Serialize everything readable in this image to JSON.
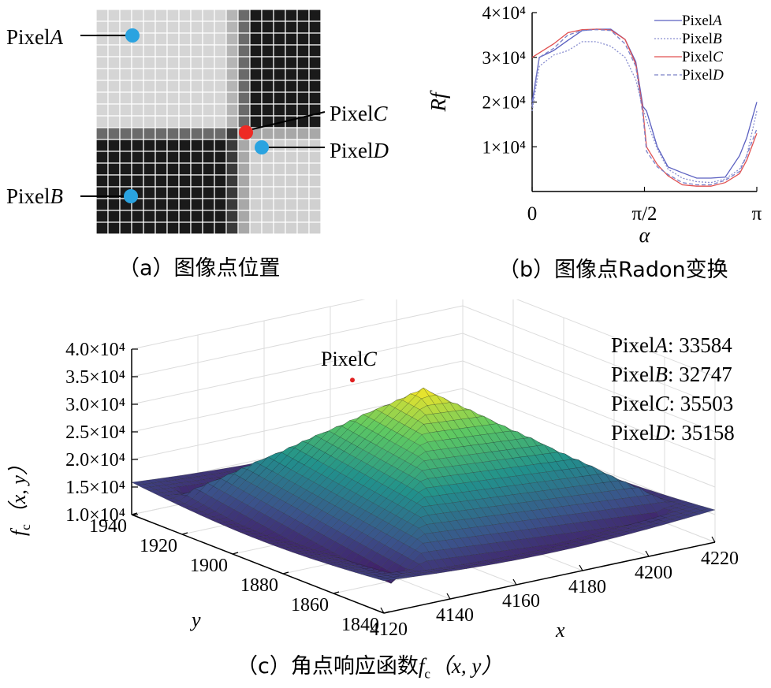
{
  "panel_a": {
    "caption": "（a）图像点位置",
    "pixel_labels": [
      {
        "prefix": "Pixel",
        "letter": "A",
        "color": "#2aa3e0"
      },
      {
        "prefix": "Pixel",
        "letter": "B",
        "color": "#2aa3e0"
      },
      {
        "prefix": "Pixel",
        "letter": "C",
        "color": "#ee2a24"
      },
      {
        "prefix": "Pixel",
        "letter": "D",
        "color": "#2aa3e0"
      }
    ]
  },
  "panel_b": {
    "caption": "（b）图像点Radon变换",
    "ylabel": "Rf",
    "xlabel": "α"
  },
  "panel_c": {
    "caption_prefix": "（c）角点响应函数",
    "caption_f": "f",
    "caption_sub": "c",
    "caption_args": "（x, y）",
    "peak_label": "PixelC",
    "zlabel_f": "f",
    "zlabel_sub": "c",
    "zlabel_args": "（x, y）",
    "xlabel": "x",
    "ylabel": "y",
    "values_list": [
      {
        "name": "PixelA",
        "value": "33584"
      },
      {
        "name": "PixelB",
        "value": "32747"
      },
      {
        "name": "PixelC",
        "value": "35503"
      },
      {
        "name": "PixelD",
        "value": "35158"
      }
    ]
  },
  "chart_data": [
    {
      "type": "line",
      "panel": "b",
      "xlabel": "α",
      "ylabel": "Rf",
      "xlim": [
        0,
        3.1416
      ],
      "ylim": [
        0,
        40000
      ],
      "x_ticks": [
        "0",
        "π/2",
        "π"
      ],
      "y_ticks": [
        "1×10⁴",
        "2×10⁴",
        "3×10⁴",
        "4×10⁴"
      ],
      "grid": false,
      "legend_position": "top-right",
      "x": [
        0,
        0.1,
        0.3,
        0.5,
        0.7,
        0.9,
        1.1,
        1.3,
        1.45,
        1.55,
        1.6,
        1.75,
        1.9,
        2.1,
        2.3,
        2.5,
        2.7,
        2.9,
        3.0,
        3.1416
      ],
      "series": [
        {
          "name": "PixelA",
          "color": "#5a5fc0",
          "dash": "solid",
          "values": [
            20000,
            30000,
            31500,
            33800,
            36000,
            36300,
            36300,
            34000,
            29000,
            19000,
            18000,
            10000,
            5500,
            4200,
            3000,
            3000,
            3200,
            8000,
            12000,
            20000
          ]
        },
        {
          "name": "PixelB",
          "color": "#8a8fd0",
          "dash": "dotted",
          "values": [
            18000,
            28000,
            30500,
            31500,
            33500,
            33500,
            32500,
            30000,
            25000,
            18500,
            16000,
            9500,
            5000,
            3000,
            2200,
            2000,
            2800,
            5000,
            8000,
            18000
          ]
        },
        {
          "name": "PixelC",
          "color": "#e05050",
          "dash": "solid",
          "values": [
            30000,
            31000,
            33000,
            35500,
            36200,
            36300,
            36100,
            34000,
            28500,
            18000,
            10000,
            6000,
            3500,
            1500,
            1200,
            1200,
            2000,
            4000,
            7000,
            13000
          ]
        },
        {
          "name": "PixelD",
          "color": "#7a80c8",
          "dash": "dashed",
          "values": [
            19000,
            30000,
            32000,
            35000,
            36000,
            36200,
            36000,
            33000,
            28000,
            17000,
            9000,
            5500,
            3800,
            2000,
            1500,
            1500,
            2500,
            4500,
            8000,
            14000
          ]
        }
      ]
    },
    {
      "type": "surface",
      "panel": "c",
      "xlabel": "x",
      "ylabel": "y",
      "zlabel": "fc（x, y）",
      "xlim": [
        4120,
        4220
      ],
      "ylim": [
        1840,
        1940
      ],
      "zlim": [
        10000,
        40000
      ],
      "x_ticks": [
        4120,
        4140,
        4160,
        4180,
        4200,
        4220
      ],
      "y_ticks": [
        1840,
        1860,
        1880,
        1900,
        1920,
        1940
      ],
      "z_ticks": [
        "1.0×10⁴",
        "1.5×10⁴",
        "2.0×10⁴",
        "2.5×10⁴",
        "3.0×10⁴",
        "3.5×10⁴",
        "4.0×10⁴"
      ],
      "peak": {
        "label": "PixelC",
        "value": 35503
      },
      "points": [
        {
          "name": "PixelA",
          "value": 33584
        },
        {
          "name": "PixelB",
          "value": 32747
        },
        {
          "name": "PixelC",
          "value": 35503
        },
        {
          "name": "PixelD",
          "value": 35158
        }
      ]
    }
  ]
}
